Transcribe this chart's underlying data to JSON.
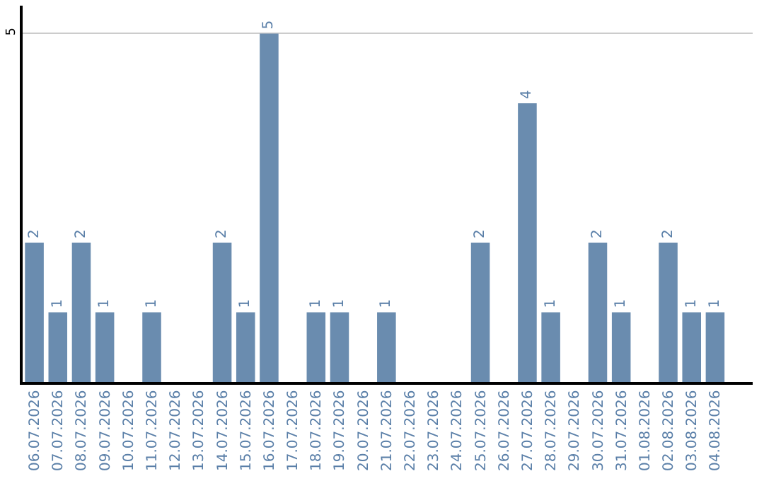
{
  "chart_data": {
    "type": "bar",
    "categories": [
      "06.07.2026",
      "07.07.2026",
      "08.07.2026",
      "09.07.2026",
      "10.07.2026",
      "11.07.2026",
      "12.07.2026",
      "13.07.2026",
      "14.07.2026",
      "15.07.2026",
      "16.07.2026",
      "17.07.2026",
      "18.07.2026",
      "19.07.2026",
      "20.07.2026",
      "21.07.2026",
      "22.07.2026",
      "23.07.2026",
      "24.07.2026",
      "25.07.2026",
      "26.07.2026",
      "27.07.2026",
      "28.07.2026",
      "29.07.2026",
      "30.07.2026",
      "31.07.2026",
      "01.08.2026",
      "02.08.2026",
      "03.08.2026",
      "04.08.2026"
    ],
    "values": [
      2,
      1,
      2,
      1,
      0,
      1,
      0,
      0,
      2,
      1,
      5,
      0,
      1,
      1,
      0,
      1,
      0,
      0,
      0,
      2,
      0,
      4,
      1,
      0,
      2,
      1,
      0,
      2,
      1,
      1
    ],
    "value_labels": [
      "2",
      "1",
      "2",
      "1",
      null,
      "1",
      null,
      null,
      "2",
      "1",
      "5",
      null,
      "1",
      "1",
      null,
      "1",
      null,
      null,
      null,
      "2",
      null,
      "4",
      "1",
      null,
      "2",
      "1",
      null,
      "2",
      "1",
      "1"
    ],
    "color": "#6a8caf",
    "ylim": [
      0,
      5.4
    ],
    "yticks": [
      5
    ],
    "grid": "y",
    "legend": false
  }
}
